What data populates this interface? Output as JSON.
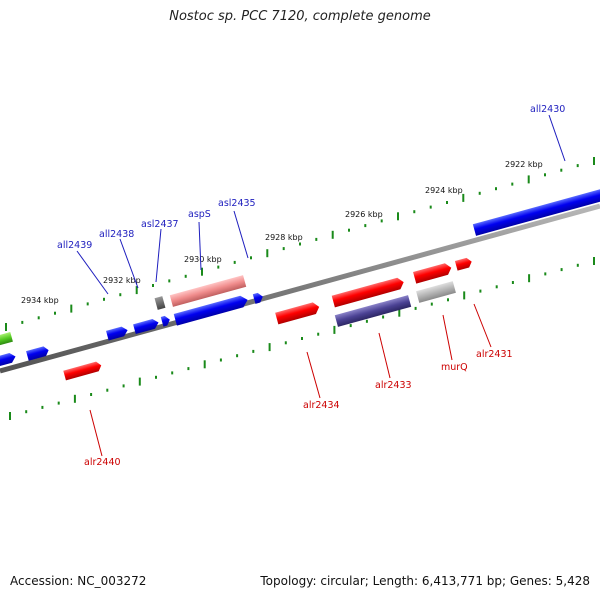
{
  "title": "Nostoc sp. PCC 7120, complete genome",
  "footer": {
    "accession": "Accession: NC_003272",
    "summary": "Topology: circular; Length: 6,413,771 bp; Genes: 5,428"
  },
  "scale_labels": [
    "2934 kbp",
    "2932 kbp",
    "2930 kbp",
    "2928 kbp",
    "2926 kbp",
    "2924 kbp",
    "2922 kbp"
  ],
  "genes_top": [
    "all2439",
    "all2438",
    "asl2437",
    "aspS",
    "asl2435",
    "all2430"
  ],
  "genes_bottom": [
    "alr2440",
    "alr2434",
    "alr2433",
    "murQ",
    "alr2431"
  ],
  "colors": {
    "forward_strand": "#0000ee",
    "reverse_strand": "#ee0000",
    "backbone": "#808080",
    "ticks": "#1a8a1a"
  }
}
